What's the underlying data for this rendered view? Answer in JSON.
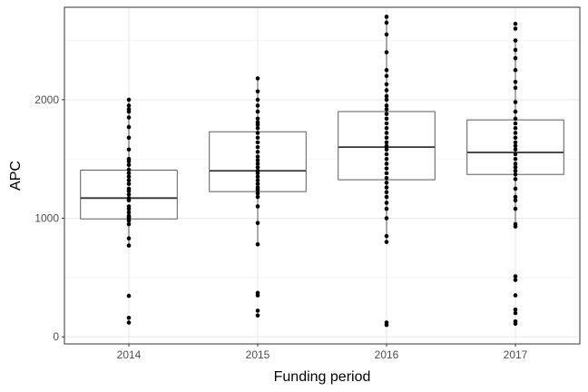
{
  "chart_data": {
    "type": "boxplot",
    "xlabel": "Funding period",
    "ylabel": "APC",
    "categories": [
      "2014",
      "2015",
      "2016",
      "2017"
    ],
    "ylim": [
      -60,
      2780
    ],
    "yticks": [
      0,
      1000,
      2000
    ],
    "grid": true,
    "theme": "bw",
    "boxes": [
      {
        "category": "2014",
        "q1": 995,
        "median": 1170,
        "q3": 1405
      },
      {
        "category": "2015",
        "q1": 1225,
        "median": 1400,
        "q3": 1730
      },
      {
        "category": "2016",
        "q1": 1325,
        "median": 1600,
        "q3": 1900
      },
      {
        "category": "2017",
        "q1": 1370,
        "median": 1555,
        "q3": 1830
      }
    ],
    "points": [
      {
        "category": "2014",
        "values": [
          120,
          160,
          345,
          770,
          830,
          950,
          980,
          1000,
          1010,
          1020,
          1050,
          1080,
          1100,
          1150,
          1170,
          1200,
          1230,
          1250,
          1290,
          1320,
          1350,
          1380,
          1410,
          1450,
          1480,
          1500,
          1580,
          1680,
          1770,
          1850,
          1900,
          1920,
          1950,
          2000
        ]
      },
      {
        "category": "2015",
        "values": [
          180,
          220,
          350,
          370,
          780,
          960,
          1100,
          1180,
          1210,
          1240,
          1260,
          1290,
          1320,
          1350,
          1380,
          1400,
          1430,
          1460,
          1490,
          1520,
          1560,
          1600,
          1640,
          1680,
          1720,
          1760,
          1790,
          1810,
          1840,
          1900,
          1950,
          2000,
          2070,
          2180
        ]
      },
      {
        "category": "2016",
        "values": [
          100,
          120,
          800,
          850,
          1000,
          1080,
          1130,
          1180,
          1220,
          1260,
          1300,
          1340,
          1380,
          1420,
          1460,
          1500,
          1540,
          1580,
          1610,
          1640,
          1680,
          1720,
          1760,
          1800,
          1840,
          1880,
          1920,
          1950,
          2000,
          2030,
          2080,
          2130,
          2200,
          2250,
          2400,
          2550,
          2650,
          2700
        ]
      },
      {
        "category": "2017",
        "values": [
          110,
          130,
          200,
          230,
          350,
          480,
          510,
          930,
          950,
          1080,
          1150,
          1180,
          1250,
          1330,
          1370,
          1400,
          1430,
          1460,
          1500,
          1540,
          1580,
          1610,
          1640,
          1680,
          1720,
          1760,
          1800,
          1840,
          1900,
          1980,
          2100,
          2150,
          2250,
          2350,
          2420,
          2500,
          2600,
          2640
        ]
      }
    ]
  }
}
